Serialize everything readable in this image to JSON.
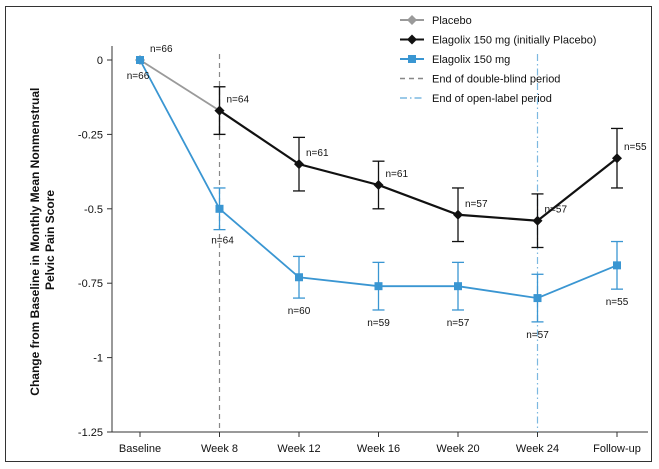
{
  "chart_data": {
    "type": "line",
    "title": "",
    "ylabel_lines": [
      "Change from Baseline in Monthly Mean Nonmenstrual",
      "Pelvic Pain Score"
    ],
    "xlabel": "",
    "categories": [
      "Baseline",
      "Week 8",
      "Week 12",
      "Week 16",
      "Week 20",
      "Week 24",
      "Follow-up"
    ],
    "ylim": [
      -1.25,
      0
    ],
    "yticks": [
      0,
      -0.25,
      -0.5,
      -0.75,
      -1,
      -1.25
    ],
    "ytick_labels": [
      "0",
      "-0.25",
      "-0.5",
      "-0.75",
      "-1",
      "-1.25"
    ],
    "grid": false,
    "legend_position": "top-right",
    "series": [
      {
        "name": "Placebo",
        "color": "#9a9a9a",
        "marker": "diamond",
        "x": [
          0,
          1
        ],
        "values": [
          0,
          -0.17
        ],
        "err": [
          null,
          0.08
        ],
        "n_labels": [
          "",
          ""
        ]
      },
      {
        "name": "Elagolix 150 mg (initially Placebo)",
        "color": "#111111",
        "marker": "diamond",
        "x": [
          1,
          2,
          3,
          4,
          5,
          6
        ],
        "values": [
          -0.17,
          -0.35,
          -0.42,
          -0.52,
          -0.54,
          -0.33
        ],
        "err": [
          0.08,
          0.09,
          0.08,
          0.09,
          0.09,
          0.1
        ],
        "n_labels": [
          "n=64",
          "n=61",
          "n=61",
          "n=57",
          "n=57",
          "n=55"
        ]
      },
      {
        "name": "Elagolix 150 mg",
        "color": "#3a96d2",
        "marker": "square",
        "x": [
          0,
          1,
          2,
          3,
          4,
          5,
          6
        ],
        "values": [
          0,
          -0.5,
          -0.73,
          -0.76,
          -0.76,
          -0.8,
          -0.69
        ],
        "err": [
          null,
          0.07,
          0.07,
          0.08,
          0.08,
          0.08,
          0.08
        ],
        "n_labels": [
          "n=66",
          "n=64",
          "n=60",
          "n=59",
          "n=57",
          "n=57",
          "n=55"
        ]
      }
    ],
    "baseline_top_label": "n=66",
    "reference_lines": [
      {
        "name": "End of double-blind period",
        "x": 1,
        "color": "#888888",
        "style": "dashed"
      },
      {
        "name": "End of open-label period",
        "x": 5,
        "color": "#7cb8e0",
        "style": "dashdot"
      }
    ]
  }
}
